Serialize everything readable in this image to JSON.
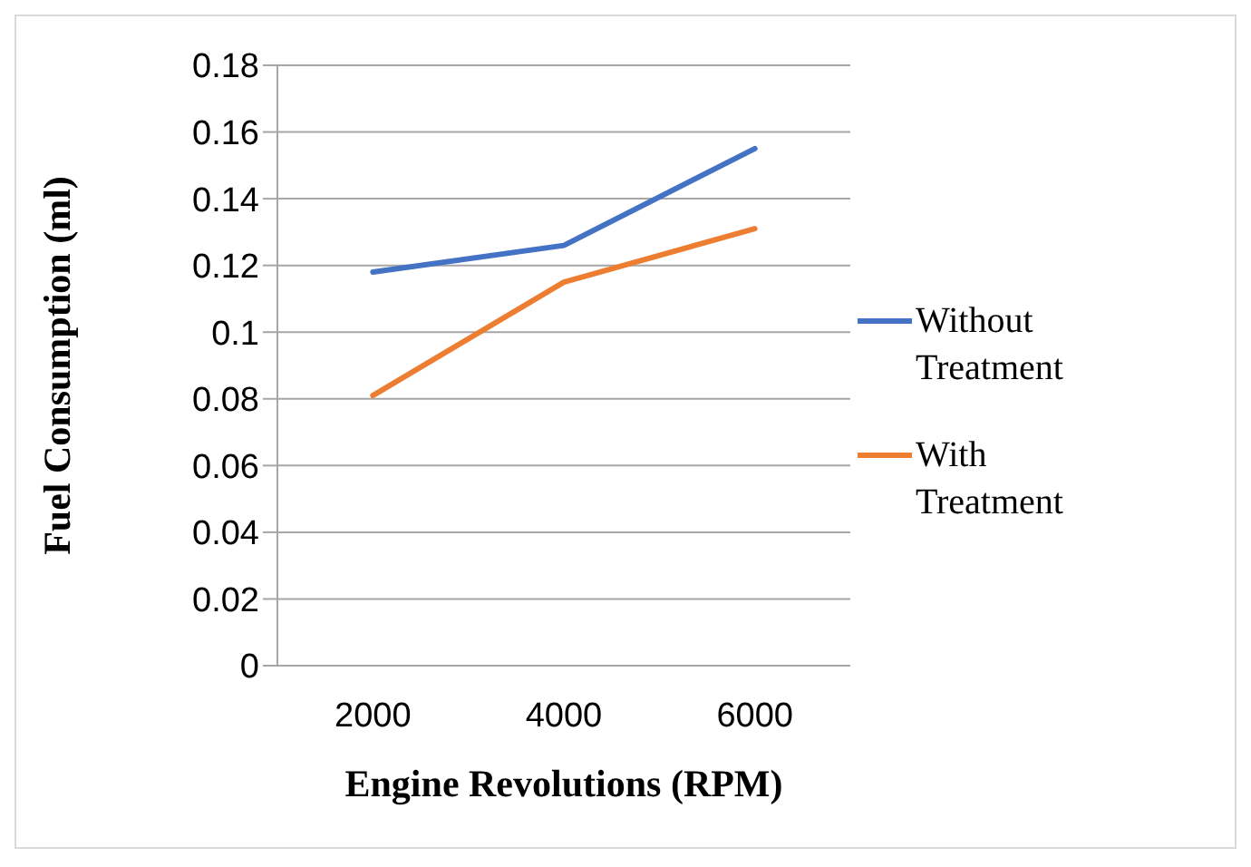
{
  "chart_data": {
    "type": "line",
    "xlabel": "Engine Revolutions (RPM)",
    "ylabel": "Fuel Consumption (ml)",
    "categories": [
      "2000",
      "4000",
      "6000"
    ],
    "series": [
      {
        "name": "Without Treatment",
        "color": "#4472c4",
        "values": [
          0.118,
          0.126,
          0.155
        ]
      },
      {
        "name": "With Treatment",
        "color": "#ed7d31",
        "values": [
          0.081,
          0.115,
          0.131
        ]
      }
    ],
    "ylim": [
      0,
      0.18
    ],
    "yticks": [
      0,
      0.02,
      0.04,
      0.06,
      0.08,
      0.1,
      0.12,
      0.14,
      0.16,
      0.18
    ],
    "grid": "y",
    "legend": "right",
    "marker": "none",
    "line_style": "solid"
  }
}
